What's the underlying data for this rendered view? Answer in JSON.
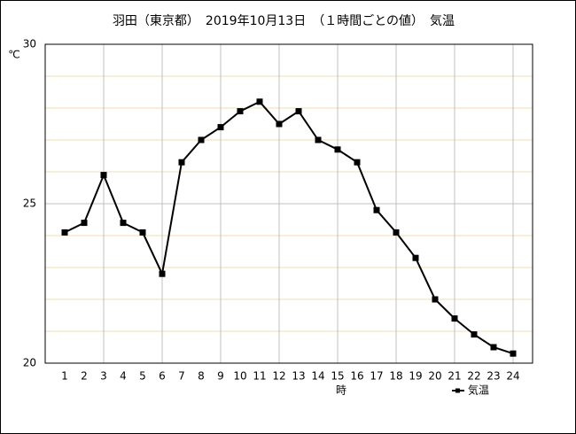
{
  "chart_data": {
    "type": "line",
    "title": "羽田（東京都）　2019年10月13日　（１時間ごとの値）　気温",
    "y_label": "℃",
    "x_label": "時",
    "x": [
      1,
      2,
      3,
      4,
      5,
      6,
      7,
      8,
      9,
      10,
      11,
      12,
      13,
      14,
      15,
      16,
      17,
      18,
      19,
      20,
      21,
      22,
      23,
      24
    ],
    "series": [
      {
        "name": "気温",
        "color": "#000000",
        "values": [
          24.1,
          24.4,
          25.9,
          24.4,
          24.1,
          22.8,
          26.3,
          27.0,
          27.4,
          27.9,
          28.2,
          27.5,
          27.9,
          27.0,
          26.7,
          26.3,
          24.8,
          24.1,
          23.3,
          22.0,
          21.4,
          20.9,
          20.5,
          20.3
        ]
      }
    ],
    "xlim": [
      0,
      25
    ],
    "xticks": [
      1,
      2,
      3,
      4,
      5,
      6,
      7,
      8,
      9,
      10,
      11,
      12,
      13,
      14,
      15,
      16,
      17,
      18,
      19,
      20,
      21,
      22,
      23,
      24
    ],
    "ylim": [
      20,
      30
    ],
    "yticks": [
      20,
      25,
      30
    ],
    "grid": true,
    "x_grid_step": 3,
    "y_minor_grid_step": 1,
    "minor_grid_color": "#f0dcb4",
    "grid_color": "#c0c0c0",
    "legend": "bottom-right"
  }
}
